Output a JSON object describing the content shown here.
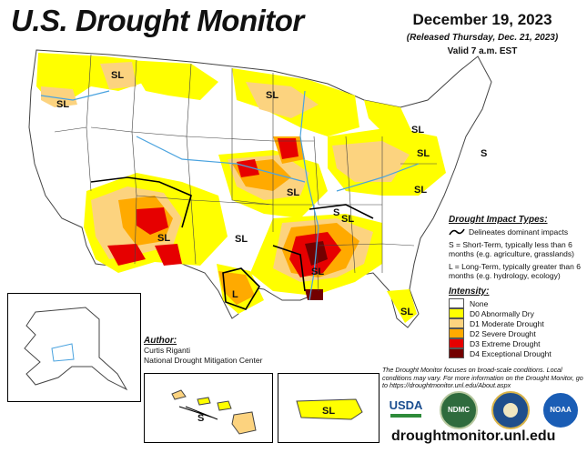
{
  "header": {
    "title": "U.S. Drought Monitor",
    "date": "December 19, 2023",
    "released": "(Released Thursday, Dec. 21, 2023)",
    "valid": "Valid 7 a.m. EST"
  },
  "map_labels": {
    "west_nw": "SL",
    "montana": "SL",
    "minnesota": "SL",
    "michigan": "SL",
    "pennsylvania": "SL",
    "east": "S",
    "kansas": "SL",
    "virginia": "SL",
    "tennessee": "S",
    "colorado": "SL",
    "oklahoma": "SL",
    "new_mexico": "SL",
    "texas": "L",
    "louisiana": "SL",
    "florida": "SL",
    "hawaii": "S",
    "puerto_rico": "SL"
  },
  "impact": {
    "heading": "Drought Impact Types:",
    "delineates": "Delineates dominant impacts",
    "short_term": "S = Short-Term, typically less than 6 months (e.g. agriculture, grasslands)",
    "long_term": "L = Long-Term, typically greater than 6 months (e.g. hydrology, ecology)"
  },
  "legend": {
    "heading": "Intensity:",
    "items": [
      {
        "label": "None",
        "color": "#ffffff"
      },
      {
        "label": "D0 Abnormally Dry",
        "color": "#ffff00"
      },
      {
        "label": "D1 Moderate Drought",
        "color": "#fcd37f"
      },
      {
        "label": "D2 Severe Drought",
        "color": "#ffaa00"
      },
      {
        "label": "D3 Extreme Drought",
        "color": "#e60000"
      },
      {
        "label": "D4 Exceptional Drought",
        "color": "#730000"
      }
    ]
  },
  "author": {
    "heading": "Author:",
    "name": "Curtis Riganti",
    "org": "National Drought Mitigation Center"
  },
  "note": "The Drought Monitor focuses on broad-scale conditions. Local conditions may vary. For more information on the Drought Monitor, go to https://droughtmonitor.unl.edu/About.aspx",
  "logos": {
    "usda": "USDA",
    "ndmc": "NDMC",
    "doc": "DOC",
    "noaa": "NOAA"
  },
  "url": "droughtmonitor.unl.edu",
  "colors": {
    "d0": "#ffff00",
    "d1": "#fcd37f",
    "d2": "#ffaa00",
    "d3": "#e60000",
    "d4": "#730000",
    "river": "#4aa3df",
    "border": "#444444"
  }
}
